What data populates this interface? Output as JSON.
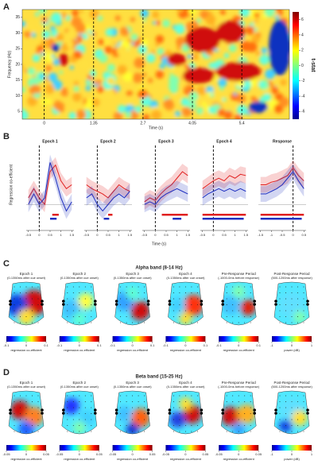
{
  "panel_a": {
    "label": "A",
    "y_label": "Frequency (Hz)",
    "x_label": "Time (s)",
    "colorbar_label": "t-stat",
    "xlim": [
      -0.6,
      6.7
    ],
    "ylim": [
      2.5,
      37.5
    ],
    "xticks": [
      0,
      1.35,
      2.7,
      4.05,
      5.4
    ],
    "yticks": [
      5,
      10,
      15,
      20,
      25,
      30,
      35
    ],
    "colorbar_lim": [
      -7,
      7
    ],
    "colorbar_ticks": [
      6,
      4,
      2,
      0,
      -2,
      -4,
      -6
    ]
  },
  "panel_b": {
    "label": "B",
    "y_label": "Regression co-efficient",
    "x_label": "Time (s)",
    "ylim": [
      -0.15,
      0.45
    ],
    "error_band": 0.06,
    "plots": [
      {
        "title": "Epoch 1",
        "xlim": [
          -0.6,
          1.6
        ],
        "xticks": [
          -0.5,
          0,
          0.5,
          1,
          1.5
        ],
        "x": [
          -0.5,
          -0.25,
          0,
          0.25,
          0.5,
          0.75,
          1,
          1.25,
          1.5
        ],
        "series": [
          {
            "color": "#e02020",
            "values": [
              0.05,
              0.12,
              0.05,
              0.0,
              0.25,
              0.3,
              0.18,
              0.12,
              0.15
            ]
          },
          {
            "color": "#2030c0",
            "values": [
              0.0,
              0.08,
              0.0,
              0.05,
              0.32,
              0.2,
              0.05,
              -0.05,
              0.02
            ]
          }
        ],
        "sig": [
          {
            "color": "#e02020",
            "x": [
              0.6,
              0.9
            ]
          },
          {
            "color": "#2030c0",
            "x": [
              0.5,
              0.8
            ]
          }
        ]
      },
      {
        "title": "Epoch 2",
        "xlim": [
          -0.6,
          1.6
        ],
        "xticks": [
          -0.5,
          0,
          0.5,
          1,
          1.5
        ],
        "x": [
          -0.5,
          -0.25,
          0,
          0.25,
          0.5,
          0.75,
          1,
          1.25,
          1.5
        ],
        "series": [
          {
            "color": "#e02020",
            "values": [
              0.15,
              0.12,
              0.1,
              0.08,
              0.05,
              0.1,
              0.15,
              0.12,
              0.1
            ]
          },
          {
            "color": "#2030c0",
            "values": [
              0.05,
              0.08,
              0.0,
              -0.05,
              0.0,
              0.05,
              0.08,
              0.05,
              0.1
            ]
          }
        ],
        "sig": [
          {
            "color": "#e02020",
            "x": [
              0.5,
              0.7
            ]
          },
          {
            "color": "#2030c0",
            "x": [
              0.3,
              0.55
            ]
          }
        ]
      },
      {
        "title": "Epoch 3",
        "xlim": [
          -0.6,
          1.6
        ],
        "xticks": [
          -0.5,
          0,
          0.5,
          1,
          1.5
        ],
        "x": [
          -0.5,
          -0.25,
          0,
          0.25,
          0.5,
          0.75,
          1,
          1.25,
          1.5
        ],
        "series": [
          {
            "color": "#e02020",
            "values": [
              0.02,
              0.05,
              0.03,
              0.08,
              0.12,
              0.15,
              0.2,
              0.25,
              0.22
            ]
          },
          {
            "color": "#2030c0",
            "values": [
              0.0,
              0.02,
              0.0,
              0.05,
              0.08,
              0.1,
              0.12,
              0.1,
              0.08
            ]
          }
        ],
        "sig": [
          {
            "color": "#e02020",
            "x": [
              0.3,
              1.5
            ]
          },
          {
            "color": "#2030c0",
            "x": [
              0.8,
              1.2
            ]
          }
        ]
      },
      {
        "title": "Epoch 4",
        "xlim": [
          -0.6,
          1.6
        ],
        "xticks": [
          -0.5,
          0,
          0.5,
          1,
          1.5
        ],
        "x": [
          -0.5,
          -0.25,
          0,
          0.25,
          0.5,
          0.75,
          1,
          1.25,
          1.5
        ],
        "series": [
          {
            "color": "#e02020",
            "values": [
              0.12,
              0.15,
              0.18,
              0.2,
              0.18,
              0.22,
              0.2,
              0.23,
              0.22
            ]
          },
          {
            "color": "#2030c0",
            "values": [
              0.05,
              0.08,
              0.1,
              0.12,
              0.1,
              0.12,
              0.1,
              0.12,
              0.1
            ]
          }
        ],
        "sig": [
          {
            "color": "#e02020",
            "x": [
              -0.5,
              1.5
            ]
          },
          {
            "color": "#2030c0",
            "x": [
              -0.5,
              1.4
            ]
          }
        ]
      },
      {
        "title": "Response",
        "xlim": [
          -1.6,
          0.6
        ],
        "xticks": [
          -1.5,
          -1,
          -0.5,
          0,
          0.5
        ],
        "x": [
          -1.5,
          -1.25,
          -1,
          -0.75,
          -0.5,
          -0.25,
          0,
          0.25,
          0.5
        ],
        "series": [
          {
            "color": "#e02020",
            "values": [
              0.15,
              0.15,
              0.17,
              0.18,
              0.2,
              0.22,
              0.28,
              0.22,
              0.18
            ]
          },
          {
            "color": "#2030c0",
            "values": [
              0.08,
              0.08,
              0.1,
              0.12,
              0.15,
              0.2,
              0.25,
              0.18,
              0.12
            ]
          }
        ],
        "sig": [
          {
            "color": "#e02020",
            "x": [
              -1.5,
              0.5
            ]
          },
          {
            "color": "#2030c0",
            "x": [
              -1.5,
              0.4
            ]
          }
        ]
      }
    ]
  },
  "panel_c": {
    "label": "C",
    "title": "Alpha band (8-14 Hz)",
    "plots": [
      {
        "title": "Epoch 1",
        "subtitle": "(0-1350ms after cue onset)",
        "cbar_ticks": [
          -0.1,
          0,
          0.1
        ],
        "cbar_label": "regression co-efficient"
      },
      {
        "title": "Epoch 2",
        "subtitle": "(0-1350ms after cue onset)",
        "cbar_ticks": [
          -0.1,
          0,
          0.1
        ],
        "cbar_label": "regression co-efficient"
      },
      {
        "title": "Epoch 3",
        "subtitle": "(0-1350ms after cue onset)",
        "cbar_ticks": [
          -0.1,
          0,
          0.1
        ],
        "cbar_label": "regression co-efficient"
      },
      {
        "title": "Epoch 4",
        "subtitle": "(0-1350ms after cue onset)",
        "cbar_ticks": [
          -0.1,
          0,
          0.1
        ],
        "cbar_label": "regression co-efficient"
      },
      {
        "title": "Pre-Response Period",
        "subtitle": "(-1000-0ms before response)",
        "cbar_ticks": [
          -0.1,
          0,
          0.1
        ],
        "cbar_label": "regression co-efficient"
      },
      {
        "title": "Post-Response Period",
        "subtitle": "(500-1200ms after response)",
        "cbar_ticks": [
          -1,
          0,
          1
        ],
        "cbar_label": "power (dB)"
      }
    ]
  },
  "panel_d": {
    "label": "D",
    "title": "Beta band (15-25 Hz)",
    "plots": [
      {
        "title": "Epoch 1",
        "subtitle": "(0-1350ms after cue onset)",
        "cbar_ticks": [
          -0.05,
          0,
          0.05
        ],
        "cbar_label": "regression co-efficient"
      },
      {
        "title": "Epoch 2",
        "subtitle": "(0-1350ms after cue onset)",
        "cbar_ticks": [
          -0.05,
          0,
          0.05
        ],
        "cbar_label": "regression co-efficient"
      },
      {
        "title": "Epoch 3",
        "subtitle": "(0-1350ms after cue onset)",
        "cbar_ticks": [
          -0.05,
          0,
          0.05
        ],
        "cbar_label": "regression co-efficient"
      },
      {
        "title": "Epoch 4",
        "subtitle": "(0-1350ms after cue onset)",
        "cbar_ticks": [
          -0.05,
          0,
          0.05
        ],
        "cbar_label": "regression co-efficient"
      },
      {
        "title": "Pre-Response Period",
        "subtitle": "(-1000-0ms before response)",
        "cbar_ticks": [
          -0.05,
          0,
          0.05
        ],
        "cbar_label": "regression co-efficient"
      },
      {
        "title": "Post-Response Period",
        "subtitle": "(500-1200ms after response)",
        "cbar_ticks": [
          -1,
          0,
          1
        ],
        "cbar_label": "power (dB)"
      }
    ]
  }
}
